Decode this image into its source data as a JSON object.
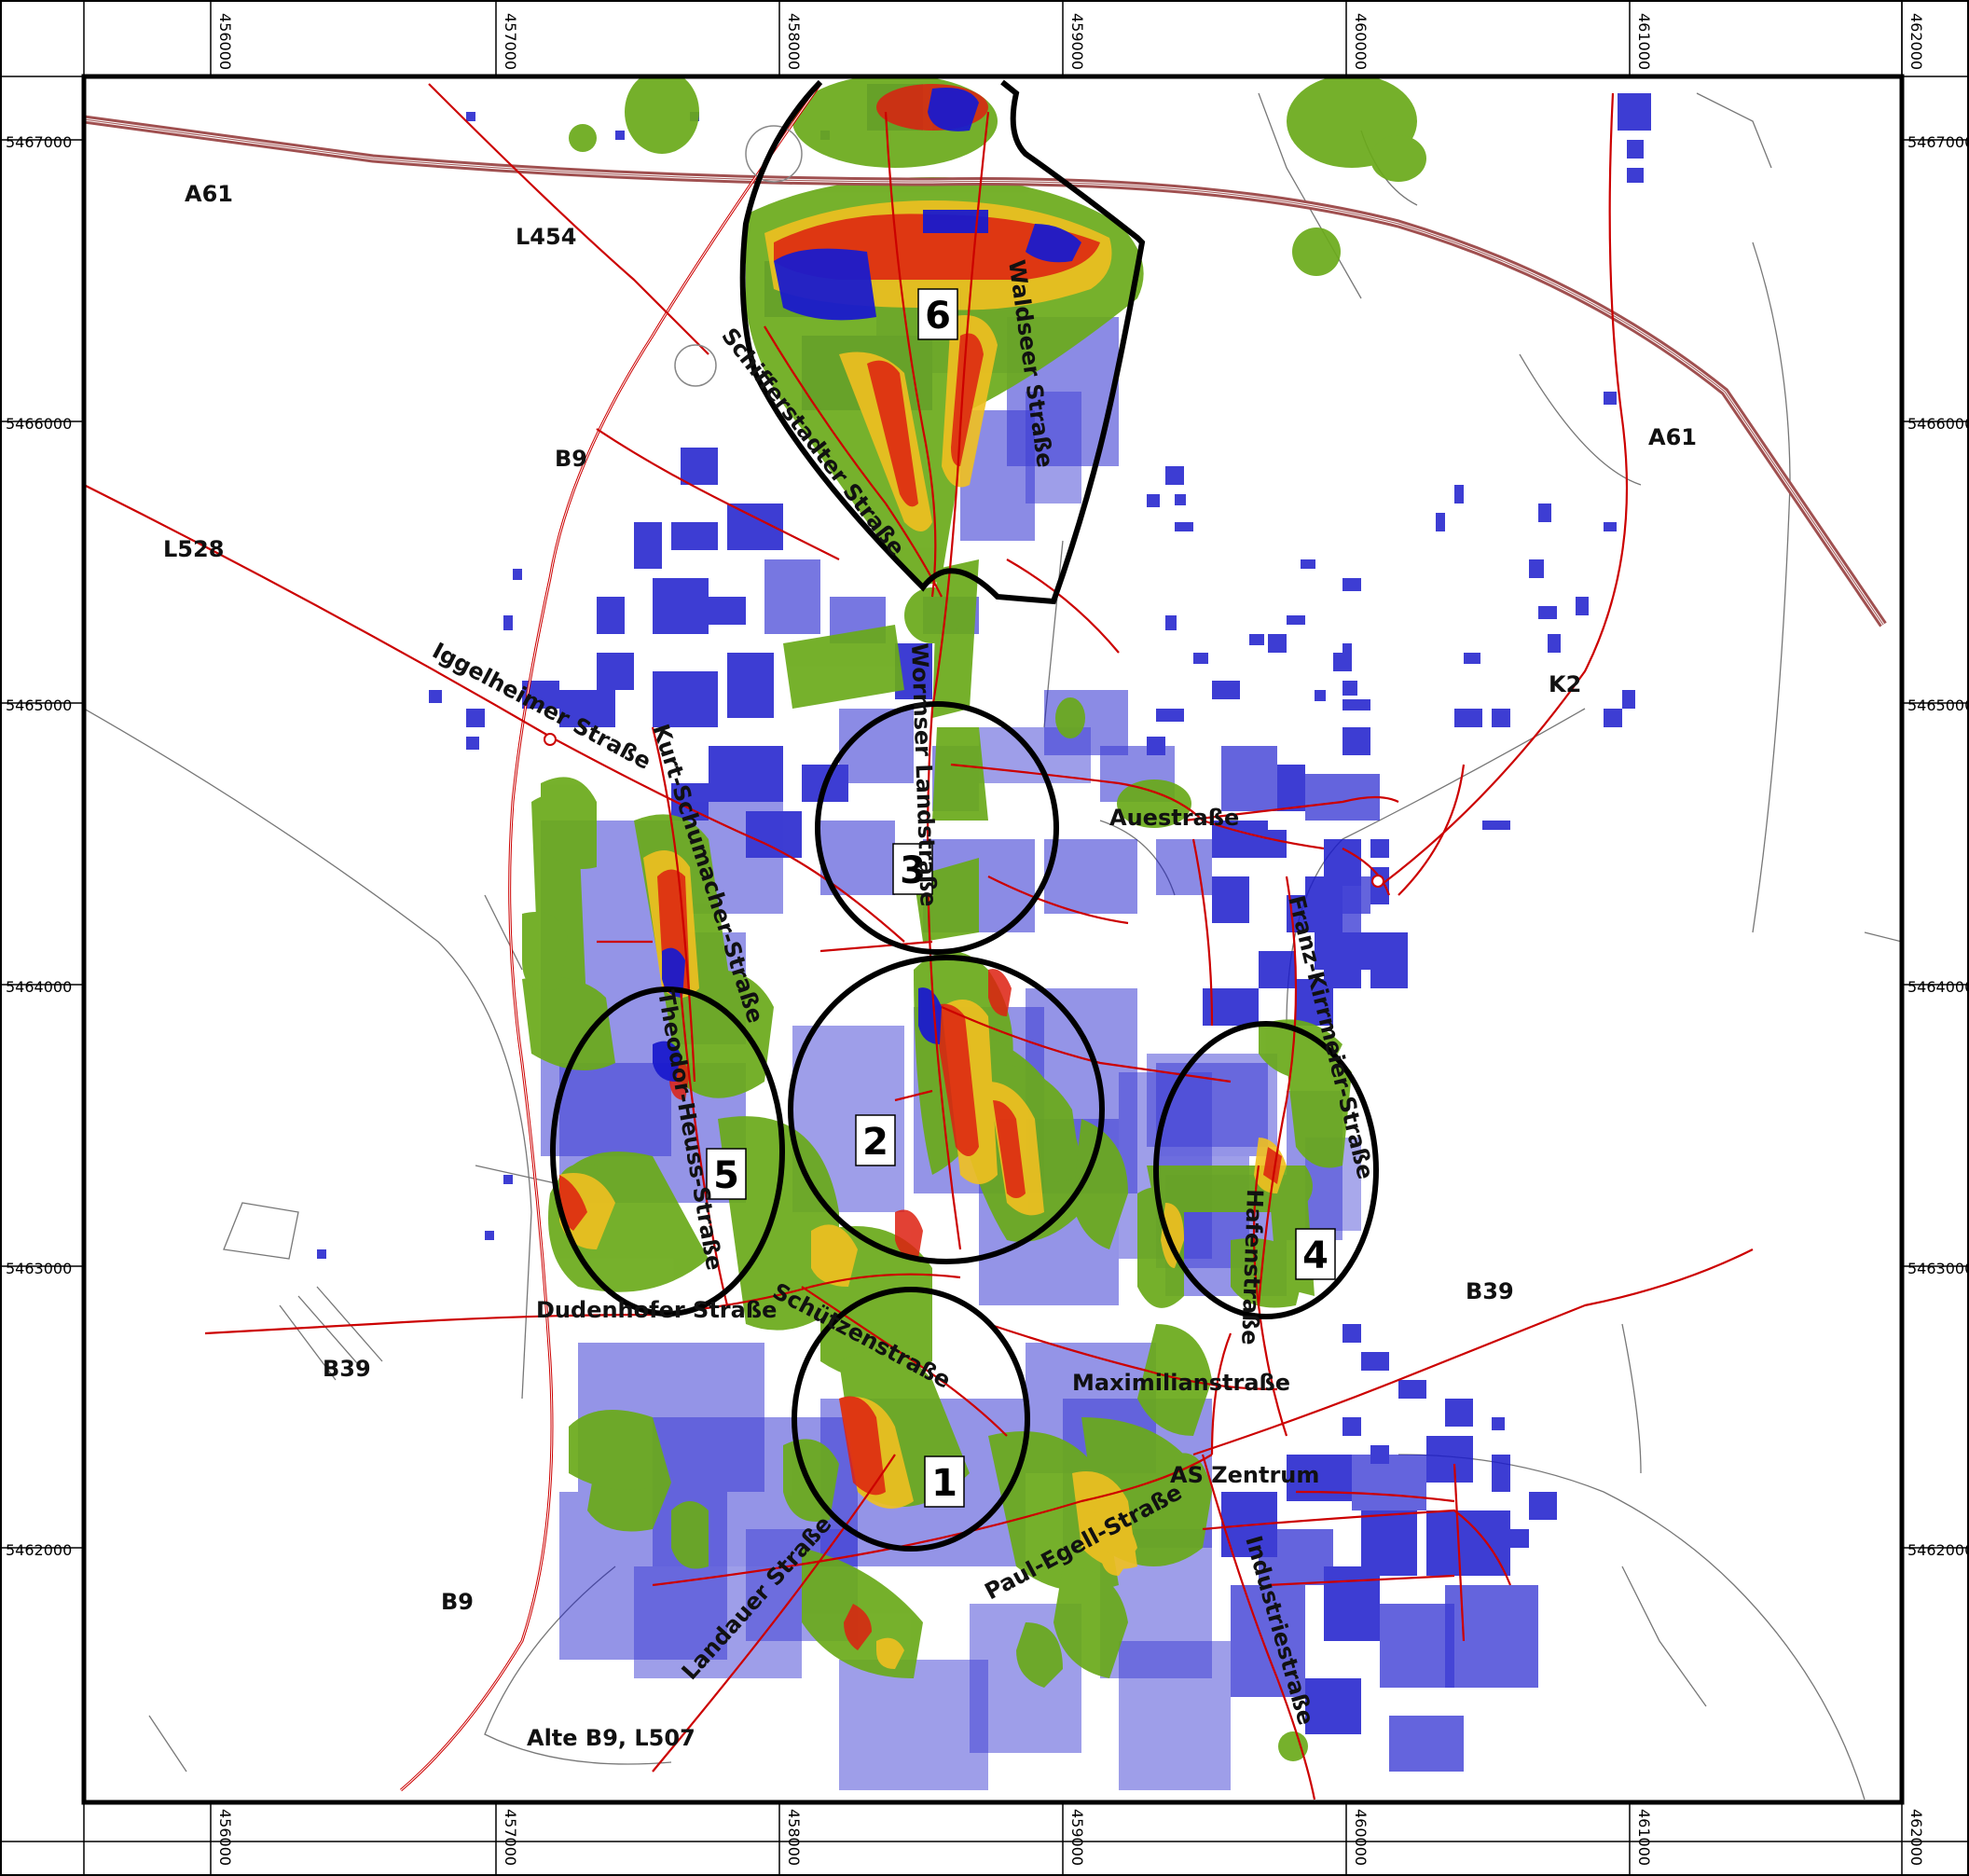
{
  "axes": {
    "x_ticks": [
      "456000",
      "457000",
      "458000",
      "459000",
      "460000",
      "461000",
      "462000"
    ],
    "y_ticks": [
      "5467000",
      "5466000",
      "5465000",
      "5464000",
      "5463000",
      "5462000"
    ]
  },
  "road_labels": {
    "a61_west": "A61",
    "a61_east": "A61",
    "l454": "L454",
    "b9_north": "B9",
    "b9_south": "B9",
    "l528": "L528",
    "iggelheimer": "Iggelheimer Straße",
    "kurt_schumacher": "Kurt-Schumacher-Straße",
    "theodor_heuss": "Theodor-Heuss-Straße",
    "schifferstadter": "Schifferstadter Straße",
    "waldseer": "Waldseer Straße",
    "wormser": "Wormser Landstraße",
    "auestrasse": "Auestraße",
    "k2": "K2",
    "franz_kirrmeier": "Franz-Kirrmeier-Straße",
    "hafenstrasse": "Hafenstraße",
    "b39_east": "B39",
    "b39_west": "B39",
    "dudenhofer": "Dudenhofer Straße",
    "schuetzenstrasse": "Schützenstraße",
    "maximilianstrasse": "Maximilianstraße",
    "as_zentrum": "AS Zentrum",
    "paul_egell": "Paul-Egell-Straße",
    "landauer": "Landauer Straße",
    "industriestrasse": "Industriestraße",
    "alte_b9": "Alte B9, L507"
  },
  "zones": [
    {
      "label": "1"
    },
    {
      "label": "2"
    },
    {
      "label": "3"
    },
    {
      "label": "4"
    },
    {
      "label": "5"
    },
    {
      "label": "6"
    }
  ],
  "colors": {
    "roads": "#cc0000",
    "motorway": "#a05050",
    "buildings": "#1a1acc",
    "heat_low": "#6aaa1a",
    "heat_mid": "#f0c020",
    "heat_high": "#dd2010",
    "zone_outline": "#000000",
    "minor_roads": "#777777"
  }
}
